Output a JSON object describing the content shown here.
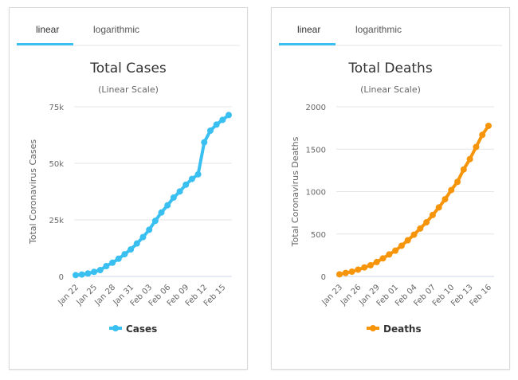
{
  "tabs": [
    {
      "label": "linear",
      "active": true
    },
    {
      "label": "logarithmic",
      "active": false
    }
  ],
  "accent": "#39c0f0",
  "chart_data": [
    {
      "type": "line",
      "title": "Total Cases",
      "subtitle": "(Linear Scale)",
      "ylabel": "Total Coronavirus Cases",
      "xlabel": "",
      "color": "#39c0f0",
      "legend": "Cases",
      "legend_position": "bottom",
      "ylim": [
        0,
        75000
      ],
      "yticks": [
        0,
        25000,
        50000,
        75000
      ],
      "ytick_labels": [
        "0",
        "25k",
        "50k",
        "75k"
      ],
      "grid": true,
      "x": [
        "Jan 22",
        "Jan 23",
        "Jan 24",
        "Jan 25",
        "Jan 26",
        "Jan 27",
        "Jan 28",
        "Jan 29",
        "Jan 30",
        "Jan 31",
        "Feb 01",
        "Feb 02",
        "Feb 03",
        "Feb 04",
        "Feb 05",
        "Feb 06",
        "Feb 07",
        "Feb 08",
        "Feb 09",
        "Feb 10",
        "Feb 11",
        "Feb 12",
        "Feb 13",
        "Feb 14",
        "Feb 15",
        "Feb 16"
      ],
      "xtick_labels": [
        "Jan 22",
        "Jan 25",
        "Jan 28",
        "Jan 31",
        "Feb 03",
        "Feb 06",
        "Feb 09",
        "Feb 12",
        "Feb 15"
      ],
      "values": [
        580,
        845,
        1317,
        2015,
        2800,
        4581,
        6058,
        7813,
        9821,
        11948,
        14551,
        17389,
        20628,
        24553,
        28276,
        31439,
        34876,
        37552,
        40553,
        43099,
        45134,
        59287,
        64438,
        67100,
        69197,
        71329
      ]
    },
    {
      "type": "line",
      "title": "Total Deaths",
      "subtitle": "(Linear Scale)",
      "ylabel": "Total Coronavirus Deaths",
      "xlabel": "",
      "color": "#f7950a",
      "legend": "Deaths",
      "legend_position": "bottom",
      "ylim": [
        0,
        2000
      ],
      "yticks": [
        0,
        500,
        1000,
        1500,
        2000
      ],
      "ytick_labels": [
        "0",
        "500",
        "1000",
        "1500",
        "2000"
      ],
      "grid": true,
      "x": [
        "Jan 23",
        "Jan 24",
        "Jan 25",
        "Jan 26",
        "Jan 27",
        "Jan 28",
        "Jan 29",
        "Jan 30",
        "Jan 31",
        "Feb 01",
        "Feb 02",
        "Feb 03",
        "Feb 04",
        "Feb 05",
        "Feb 06",
        "Feb 07",
        "Feb 08",
        "Feb 09",
        "Feb 10",
        "Feb 11",
        "Feb 12",
        "Feb 13",
        "Feb 14",
        "Feb 15",
        "Feb 16"
      ],
      "xtick_labels": [
        "Jan 23",
        "Jan 26",
        "Jan 29",
        "Feb 01",
        "Feb 04",
        "Feb 07",
        "Feb 10",
        "Feb 13",
        "Feb 16"
      ],
      "values": [
        25,
        41,
        56,
        80,
        106,
        132,
        170,
        213,
        259,
        304,
        362,
        426,
        492,
        565,
        638,
        724,
        813,
        910,
        1018,
        1115,
        1261,
        1383,
        1526,
        1669,
        1775
      ]
    }
  ]
}
